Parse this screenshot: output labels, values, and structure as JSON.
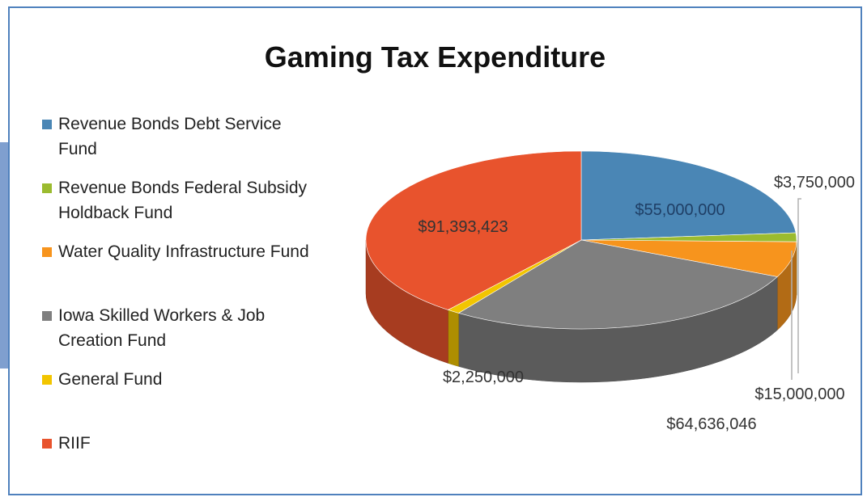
{
  "chart_data": {
    "type": "pie",
    "title": "Gaming Tax Expenditure",
    "legend_position": "left",
    "three_d": true,
    "slices": [
      {
        "name": "Revenue Bonds Debt Service Fund",
        "value": 55000000,
        "label": "$55,000,000",
        "color": "#4a86b5"
      },
      {
        "name": "Revenue Bonds Federal Subsidy Holdback Fund",
        "value": 3750000,
        "label": "$3,750,000",
        "color": "#9bbb2f"
      },
      {
        "name": "Water Quality Infrastructure Fund",
        "value": 15000000,
        "label": "$15,000,000",
        "color": "#f7941d"
      },
      {
        "name": "Iowa Skilled Workers & Job Creation Fund",
        "value": 64636046,
        "label": "$64,636,046",
        "color": "#7f7f7f"
      },
      {
        "name": "General Fund",
        "value": 2250000,
        "label": "$2,250,000",
        "color": "#f2c500"
      },
      {
        "name": "RIIF",
        "value": 91393423,
        "label": "$91,393,423",
        "color": "#e8532d"
      }
    ]
  }
}
